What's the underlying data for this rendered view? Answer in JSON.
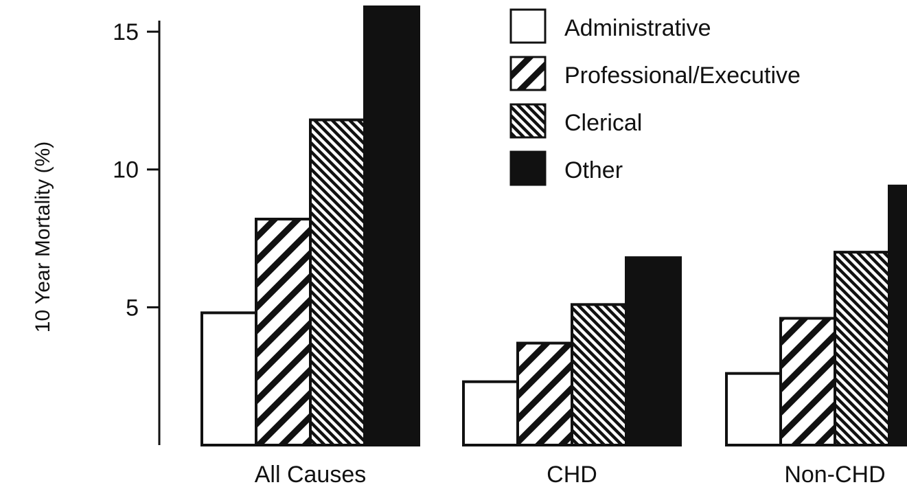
{
  "chart_data": {
    "type": "bar",
    "title": "",
    "xlabel": "",
    "ylabel": "10 Year Mortality (%)",
    "ylim": [
      0,
      15.9
    ],
    "yticks": [
      5,
      10,
      15
    ],
    "categories": [
      "All Causes",
      "CHD",
      "Non-CHD"
    ],
    "series": [
      {
        "name": "Administrative",
        "pattern": "none",
        "values": [
          4.8,
          2.3,
          2.6
        ]
      },
      {
        "name": "Professional/Executive",
        "pattern": "diagonal-right",
        "values": [
          8.2,
          3.7,
          4.6
        ]
      },
      {
        "name": "Clerical",
        "pattern": "diagonal-left",
        "values": [
          11.8,
          5.1,
          7.0
        ]
      },
      {
        "name": "Other",
        "pattern": "solid",
        "values": [
          15.9,
          6.8,
          9.4
        ]
      }
    ],
    "legend_position": "top-right",
    "grid": false,
    "colors": {
      "ink": "#111111",
      "fill": "#ffffff"
    }
  }
}
